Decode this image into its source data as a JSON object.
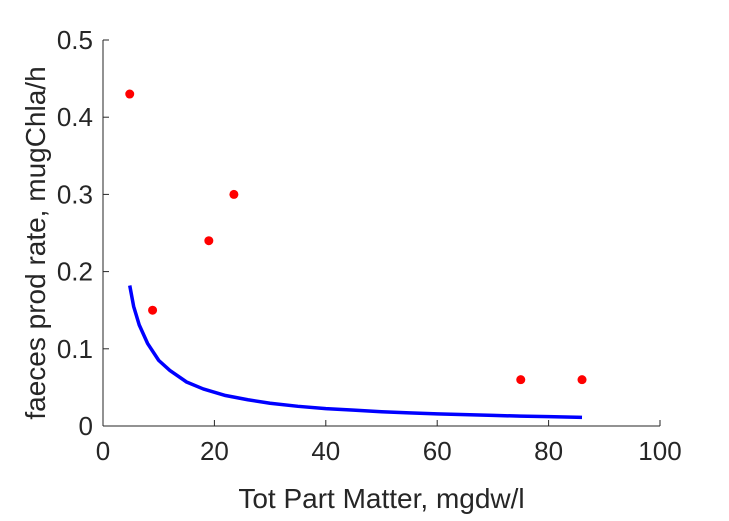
{
  "chart_data": {
    "type": "scatter",
    "title": "",
    "xlabel": "Tot Part Matter, mgdw/l",
    "ylabel": "faeces prod rate, mugChla/h",
    "xlim": [
      0,
      100
    ],
    "ylim": [
      0,
      0.5
    ],
    "xticks": [
      0,
      20,
      40,
      60,
      80,
      100
    ],
    "xtick_labels": [
      "0",
      "20",
      "40",
      "60",
      "80",
      "100"
    ],
    "yticks": [
      0,
      0.1,
      0.2,
      0.3,
      0.4,
      0.5
    ],
    "ytick_labels": [
      "0",
      "0.1",
      "0.2",
      "0.3",
      "0.4",
      "0.5"
    ],
    "grid": false,
    "legend": "none",
    "series": [
      {
        "kind": "points",
        "color": "#ff0000",
        "x": [
          4.8,
          8.9,
          19.0,
          23.5,
          75.0,
          86.0
        ],
        "y": [
          0.43,
          0.15,
          0.24,
          0.3,
          0.06,
          0.06
        ]
      },
      {
        "kind": "curve",
        "color": "#0000ff",
        "x": [
          4.8,
          5.5,
          6.5,
          8,
          10,
          12,
          15,
          18,
          22,
          26,
          30,
          35,
          40,
          45,
          50,
          55,
          60,
          65,
          70,
          75,
          80,
          86
        ],
        "y": [
          0.182,
          0.155,
          0.131,
          0.107,
          0.085,
          0.072,
          0.057,
          0.048,
          0.0395,
          0.034,
          0.0295,
          0.0255,
          0.0225,
          0.0205,
          0.0185,
          0.017,
          0.0157,
          0.0147,
          0.0137,
          0.0128,
          0.0121,
          0.0112
        ]
      }
    ]
  }
}
